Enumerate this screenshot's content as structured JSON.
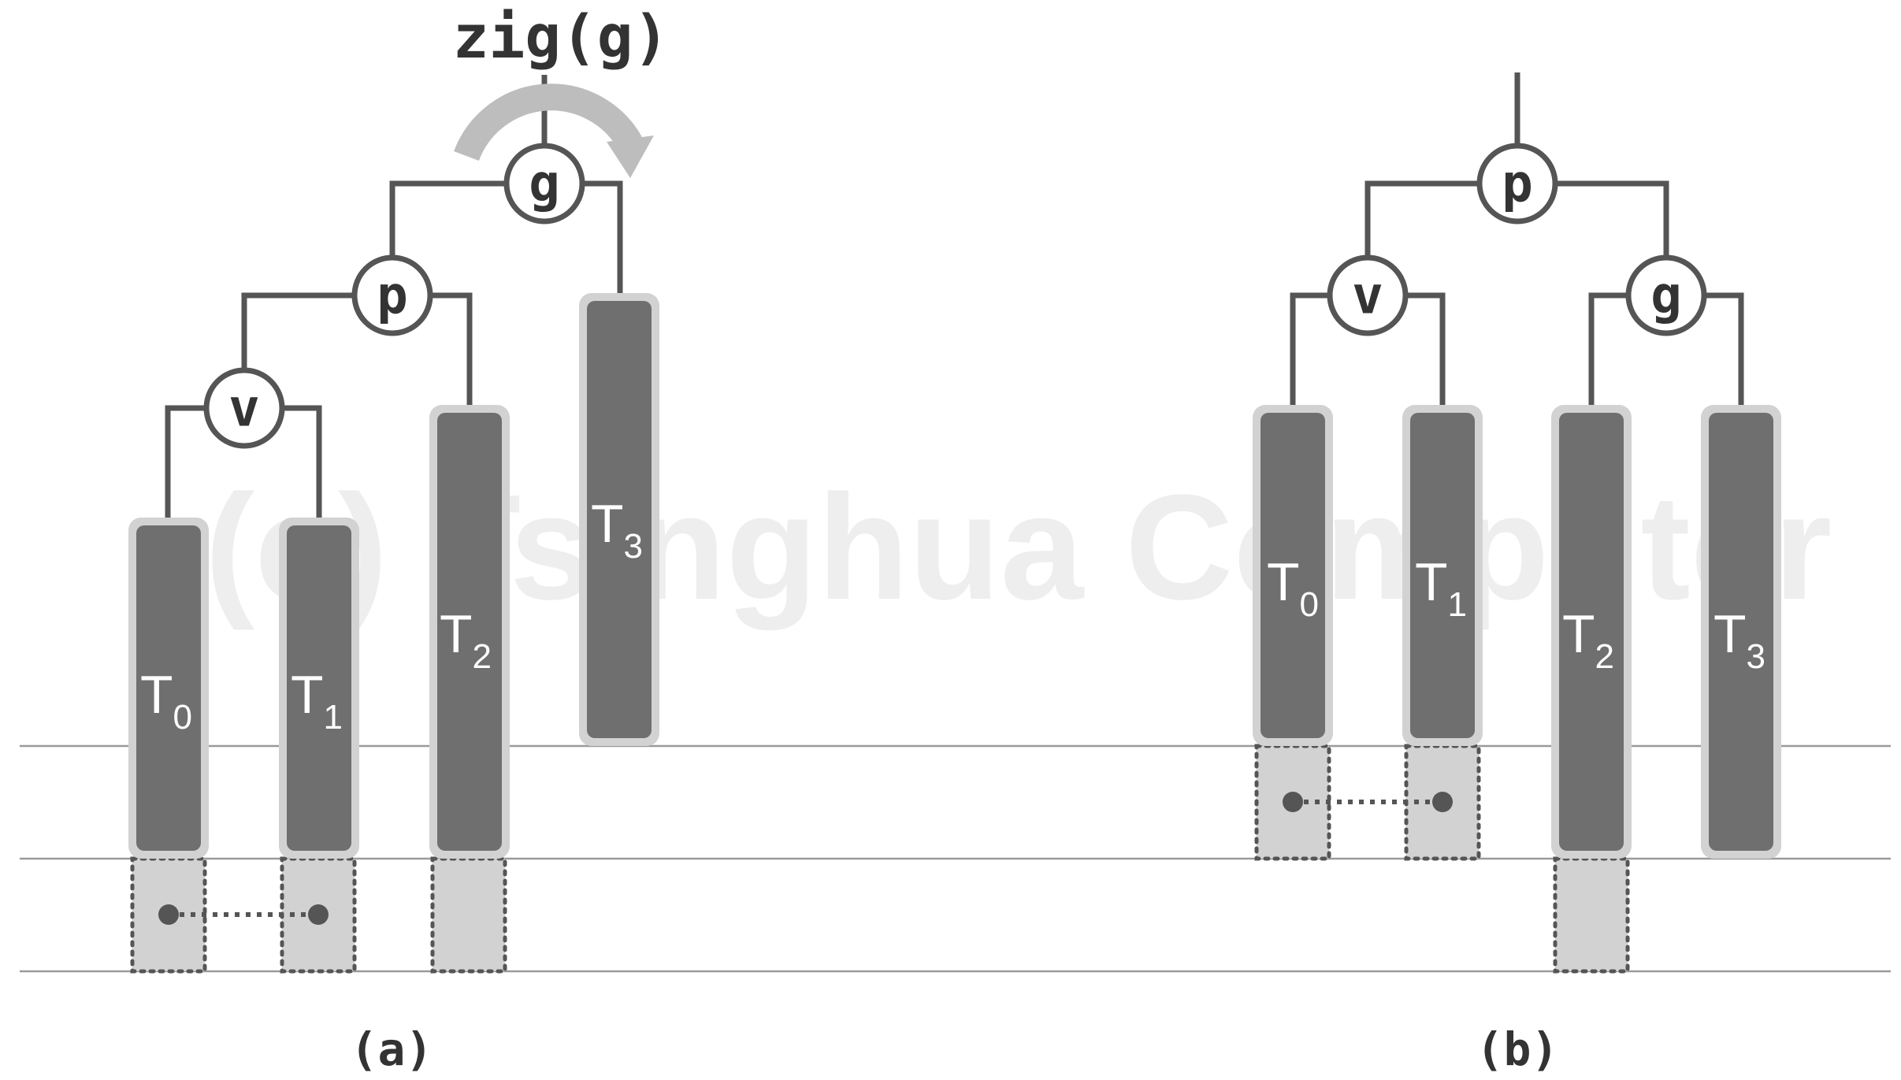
{
  "watermark": "(c) Tsinghua Computer",
  "operation": "zig(g)",
  "captions": {
    "a": "(a)",
    "b": "(b)"
  },
  "diagram_a": {
    "nodes": {
      "g": "g",
      "p": "p",
      "v": "v"
    },
    "subtrees": [
      {
        "base": "T",
        "sub": "0"
      },
      {
        "base": "T",
        "sub": "1"
      },
      {
        "base": "T",
        "sub": "2"
      },
      {
        "base": "T",
        "sub": "3"
      }
    ]
  },
  "diagram_b": {
    "nodes": {
      "p": "p",
      "v": "v",
      "g": "g"
    },
    "subtrees": [
      {
        "base": "T",
        "sub": "0"
      },
      {
        "base": "T",
        "sub": "1"
      },
      {
        "base": "T",
        "sub": "2"
      },
      {
        "base": "T",
        "sub": "3"
      }
    ]
  },
  "colors": {
    "edge": "#555555",
    "subtree_fill": "#6f6f6f",
    "subtree_border": "#d2d2d2",
    "rotation_arrow": "#bdbdbd"
  }
}
